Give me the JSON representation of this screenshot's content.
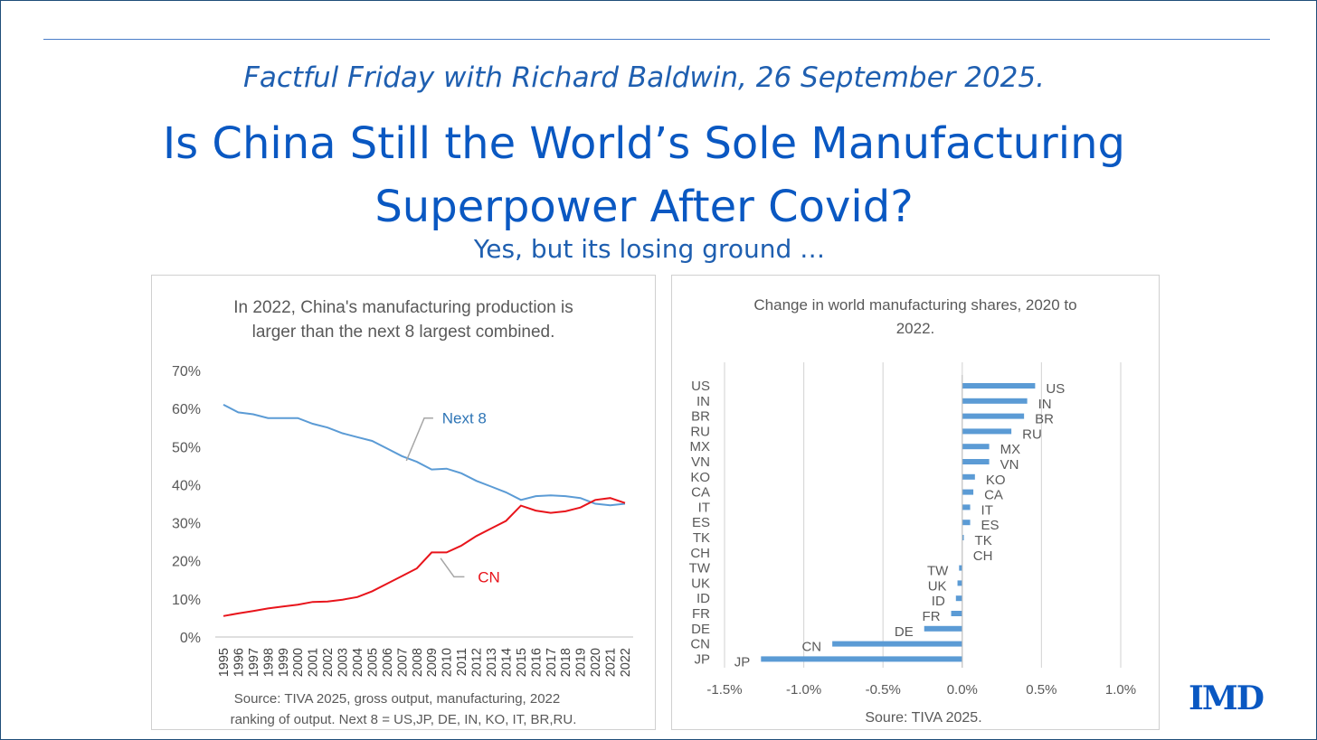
{
  "header": {
    "kicker": "Factful Friday with Richard Baldwin, 26 September 2025.",
    "title_line1": "Is China Still the World’s Sole Manufacturing",
    "title_line2": "Superpower After Covid?",
    "subtitle": "Yes, but its losing ground …"
  },
  "logo": {
    "text": "IMD"
  },
  "colors": {
    "next8": "#5b9bd5",
    "cn": "#e8141b",
    "bar": "#5b9bd5",
    "title": "#0a58c2"
  },
  "chart_data": [
    {
      "type": "line",
      "title_line1": "In 2022, China's manufacturing production is",
      "title_line2": "larger than the next 8 largest combined.",
      "x": [
        "1995",
        "1996",
        "1997",
        "1998",
        "1999",
        "2000",
        "2001",
        "2002",
        "2003",
        "2004",
        "2005",
        "2006",
        "2007",
        "2008",
        "2009",
        "2010",
        "2011",
        "2012",
        "2013",
        "2014",
        "2015",
        "2016",
        "2017",
        "2018",
        "2019",
        "2020",
        "2021",
        "2022"
      ],
      "series": [
        {
          "name": "Next 8",
          "values": [
            61,
            59,
            58.5,
            57.5,
            57.5,
            57.5,
            56,
            55,
            53.5,
            52.5,
            51.5,
            49.5,
            47.5,
            46,
            44,
            44.2,
            43,
            41,
            39.5,
            38,
            36,
            37,
            37.2,
            37,
            36.5,
            35,
            34.6,
            35
          ]
        },
        {
          "name": "CN",
          "values": [
            5.5,
            6.2,
            6.8,
            7.5,
            8,
            8.5,
            9.2,
            9.3,
            9.8,
            10.5,
            12,
            14,
            16,
            18,
            22.2,
            22.2,
            24,
            26.5,
            28.5,
            30.5,
            34.5,
            33.2,
            32.6,
            33,
            34,
            36,
            36.5,
            35.2
          ]
        }
      ],
      "yticks": [
        "70%",
        "60%",
        "50%",
        "40%",
        "30%",
        "20%",
        "10%",
        "0%"
      ],
      "ylim": [
        0,
        70
      ],
      "grid": false,
      "source_line1": "Source: TIVA 2025, gross output, manufacturing, 2022",
      "source_line2": "ranking of output. Next 8 = US,JP, DE, IN, KO, IT, BR,RU."
    },
    {
      "type": "bar",
      "orientation": "horizontal",
      "title_line1": "Change in world manufacturing shares, 2020 to",
      "title_line2": "2022.",
      "categories": [
        "US",
        "IN",
        "BR",
        "RU",
        "MX",
        "VN",
        "KO",
        "CA",
        "IT",
        "ES",
        "TK",
        "CH",
        "TW",
        "UK",
        "ID",
        "FR",
        "DE",
        "CN",
        "JP"
      ],
      "values": [
        0.46,
        0.41,
        0.39,
        0.31,
        0.17,
        0.17,
        0.08,
        0.07,
        0.05,
        0.05,
        0.01,
        0.0,
        -0.02,
        -0.03,
        -0.04,
        -0.07,
        -0.24,
        -0.82,
        -1.27
      ],
      "xticks": [
        "-1.5%",
        "-1.0%",
        "-0.5%",
        "0.0%",
        "0.5%",
        "1.0%"
      ],
      "xlim": [
        -1.5,
        1.0
      ],
      "grid": true,
      "source": "Soure: TIVA 2025."
    }
  ]
}
